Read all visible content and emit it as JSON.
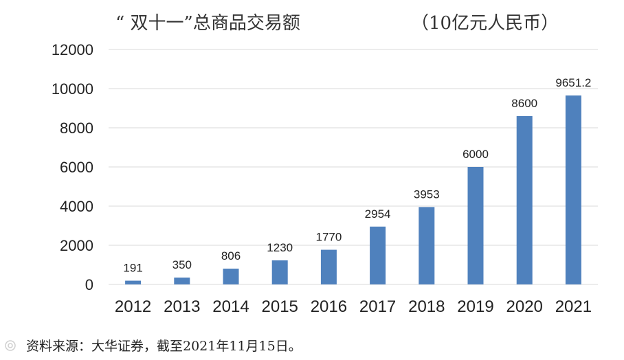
{
  "chart_data": {
    "type": "bar",
    "title": "“ 双十一”总商品交易额",
    "unit": "（10亿元人民币）",
    "categories": [
      "2012",
      "2013",
      "2014",
      "2015",
      "2016",
      "2017",
      "2018",
      "2019",
      "2020",
      "2021"
    ],
    "values": [
      191,
      350,
      806,
      1230,
      1770,
      2954,
      3953,
      6000,
      8600,
      9651.2
    ],
    "data_labels": [
      "191",
      "350",
      "806",
      "1230",
      "1770",
      "2954",
      "3953",
      "6000",
      "8600",
      "9651.2"
    ],
    "yticks": [
      "0",
      "2000",
      "4000",
      "6000",
      "8000",
      "10000",
      "12000"
    ],
    "ylim": [
      0,
      12000
    ],
    "grid": true,
    "bar_color": "#4f81bd",
    "grid_color": "#d9d9d9"
  },
  "source": "资料来源：大华证券，截至2021年11月15日。",
  "watermark_icon": "camera-icon"
}
